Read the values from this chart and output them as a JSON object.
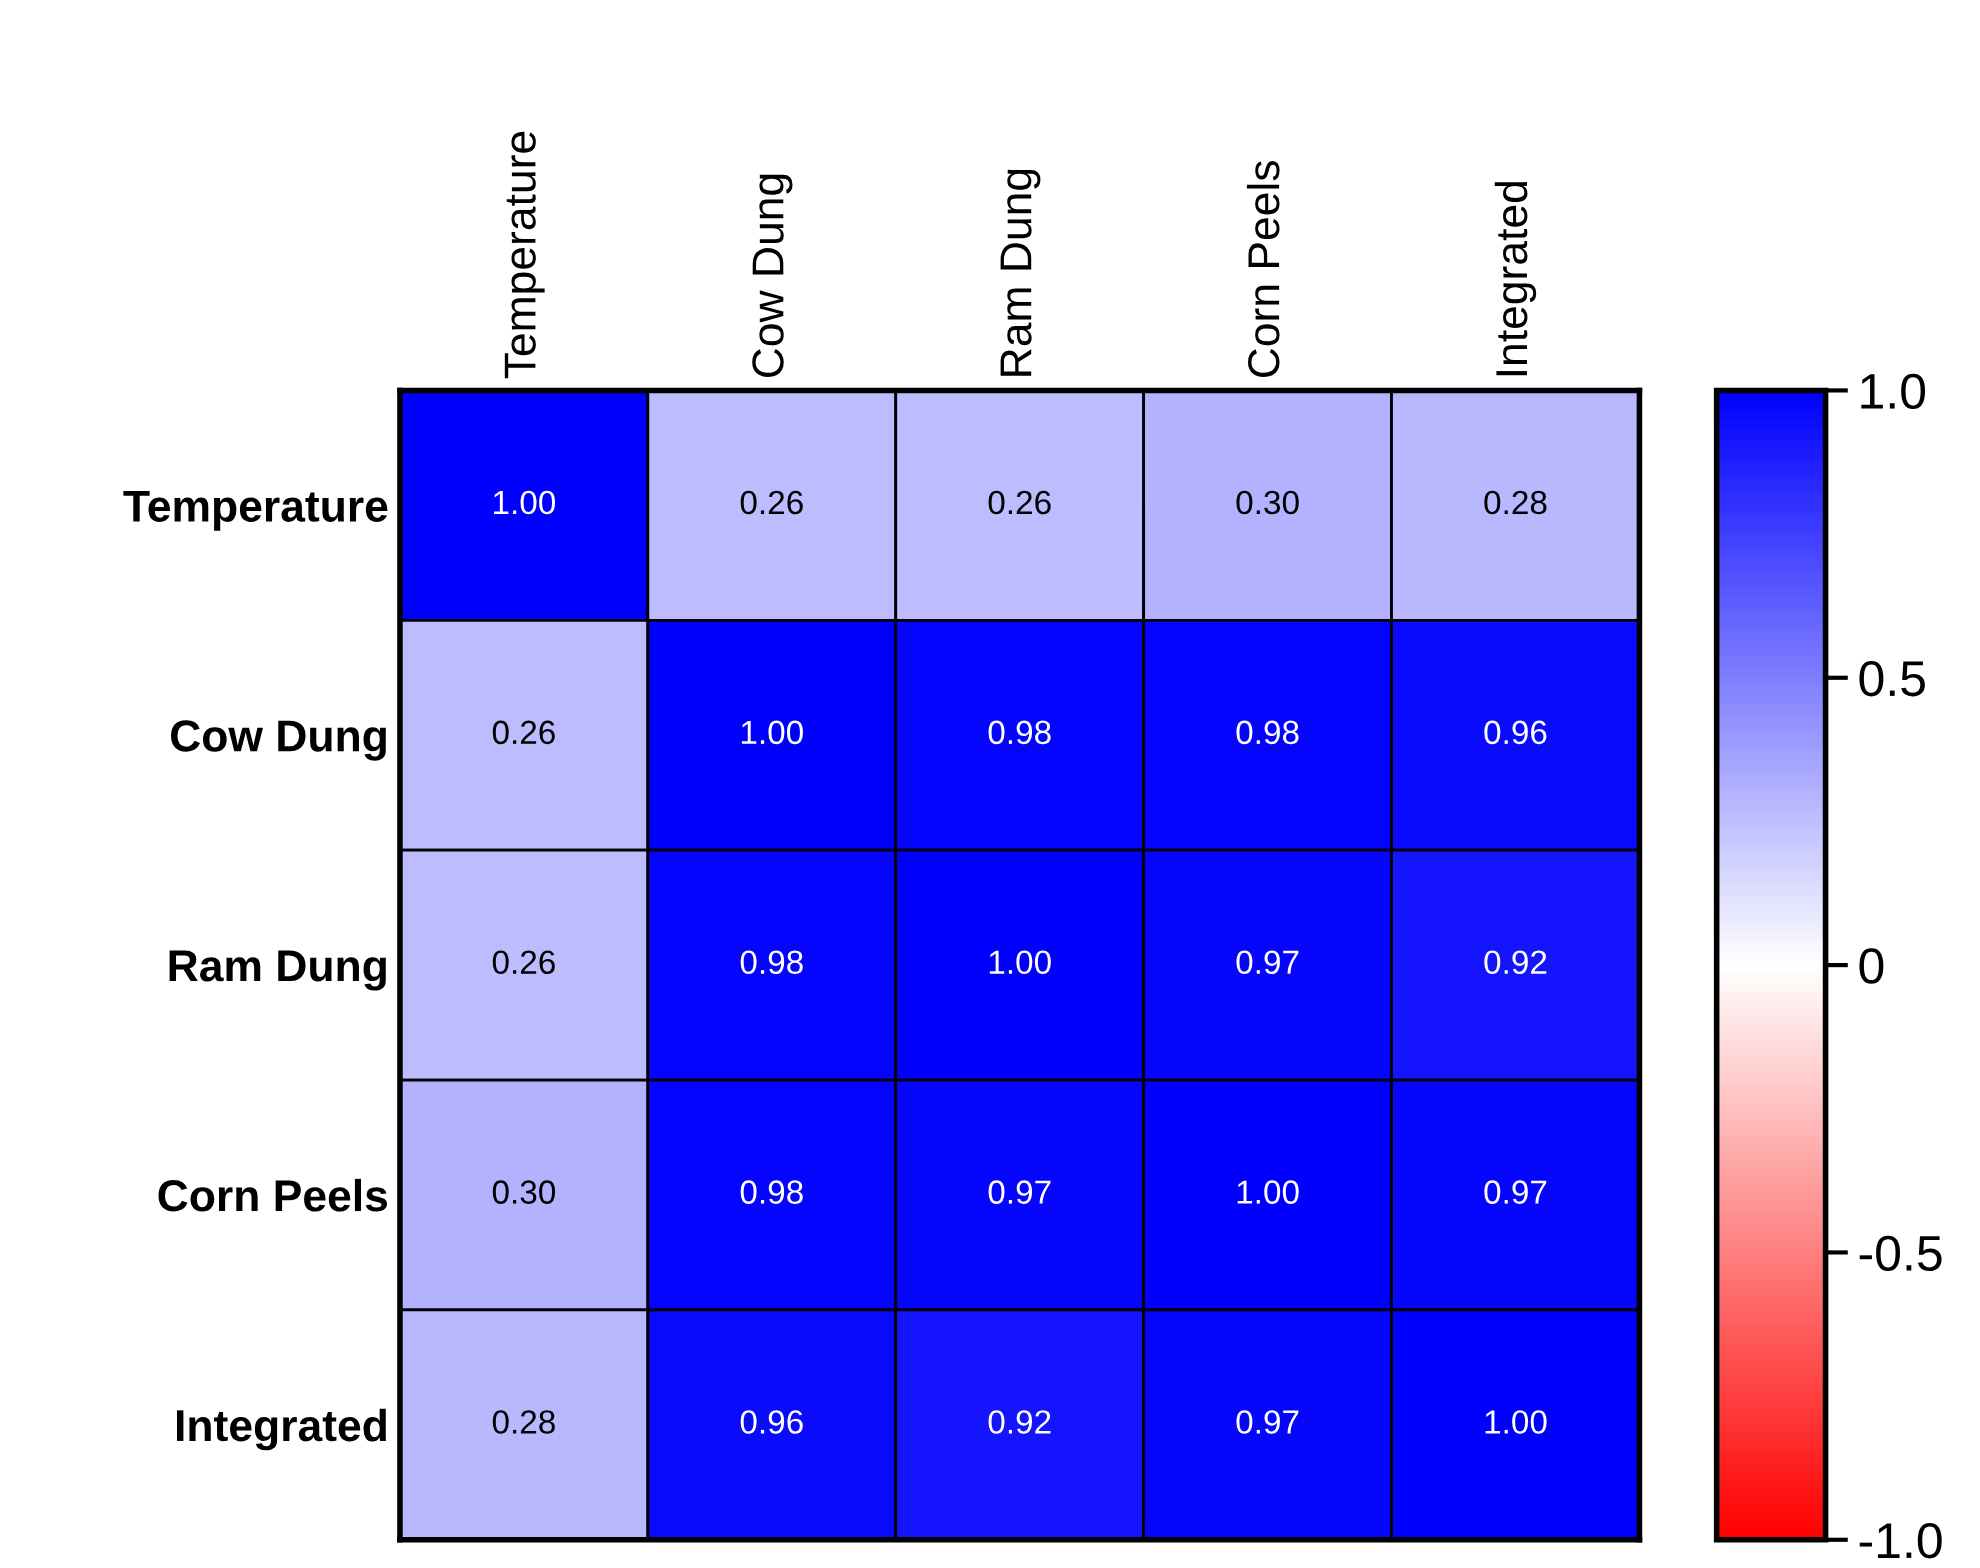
{
  "chart_data": {
    "type": "heatmap",
    "categories": [
      "Temperature",
      "Cow Dung",
      "Ram Dung",
      "Corn Peels",
      "Integrated"
    ],
    "y_categories": [
      "Temperature",
      "Cow Dung",
      "Ram Dung",
      "Corn Peels",
      "Integrated"
    ],
    "cells": [
      [
        1.0,
        0.26,
        0.26,
        0.3,
        0.28
      ],
      [
        0.26,
        1.0,
        0.98,
        0.98,
        0.96
      ],
      [
        0.26,
        0.98,
        1.0,
        0.97,
        0.92
      ],
      [
        0.3,
        0.98,
        0.97,
        1.0,
        0.97
      ],
      [
        0.28,
        0.96,
        0.92,
        0.97,
        1.0
      ]
    ],
    "cell_labels": [
      [
        "1.00",
        "0.26",
        "0.26",
        "0.30",
        "0.28"
      ],
      [
        "0.26",
        "1.00",
        "0.98",
        "0.98",
        "0.96"
      ],
      [
        "0.26",
        "0.98",
        "1.00",
        "0.97",
        "0.92"
      ],
      [
        "0.30",
        "0.98",
        "0.97",
        "1.00",
        "0.97"
      ],
      [
        "0.28",
        "0.96",
        "0.92",
        "0.97",
        "1.00"
      ]
    ],
    "clim": [
      -1.0,
      1.0
    ],
    "cticks": [
      {
        "value": 1.0,
        "label": "1.0"
      },
      {
        "value": 0.5,
        "label": "0.5"
      },
      0,
      {
        "value": -0.5,
        "label": "-0.5"
      },
      {
        "value": -1.0,
        "label": "-1.0"
      }
    ]
  }
}
